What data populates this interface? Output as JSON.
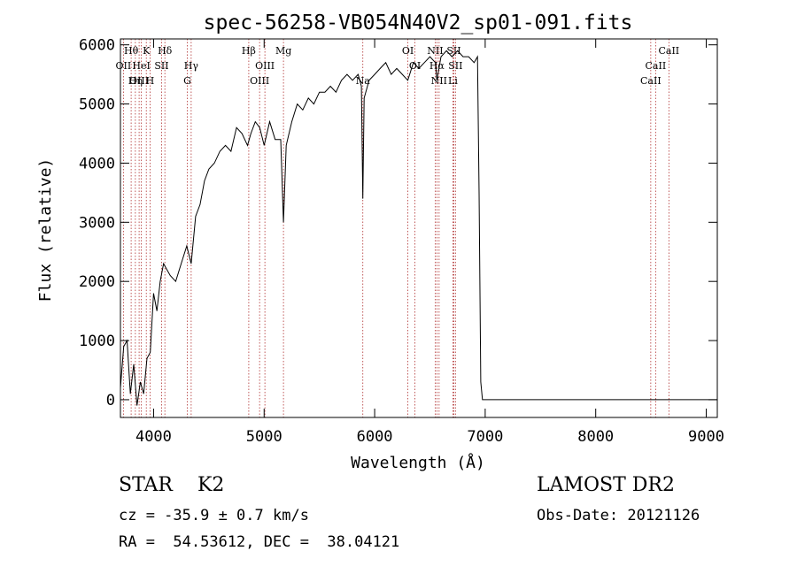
{
  "chart_data": {
    "type": "line",
    "title": "spec-56258-VB054N40V2_sp01-091.fits",
    "xlabel": "Wavelength (Å)",
    "ylabel": "Flux (relative)",
    "xlim": [
      3700,
      9100
    ],
    "ylim": [
      -300,
      6100
    ],
    "x_ticks": [
      4000,
      5000,
      6000,
      7000,
      8000,
      9000
    ],
    "y_ticks": [
      0,
      1000,
      2000,
      3000,
      4000,
      5000,
      6000
    ],
    "grid": false,
    "line_color": "#000000",
    "marker_color": "#b03030",
    "series": [
      {
        "points": [
          [
            3700,
            200
          ],
          [
            3730,
            900
          ],
          [
            3760,
            1000
          ],
          [
            3790,
            100
          ],
          [
            3820,
            600
          ],
          [
            3850,
            -100
          ],
          [
            3880,
            300
          ],
          [
            3910,
            100
          ],
          [
            3940,
            700
          ],
          [
            3970,
            800
          ],
          [
            4000,
            1800
          ],
          [
            4030,
            1500
          ],
          [
            4060,
            2000
          ],
          [
            4090,
            2300
          ],
          [
            4120,
            2200
          ],
          [
            4150,
            2100
          ],
          [
            4200,
            2000
          ],
          [
            4250,
            2300
          ],
          [
            4300,
            2600
          ],
          [
            4340,
            2300
          ],
          [
            4380,
            3100
          ],
          [
            4420,
            3300
          ],
          [
            4460,
            3700
          ],
          [
            4500,
            3900
          ],
          [
            4550,
            4000
          ],
          [
            4600,
            4200
          ],
          [
            4650,
            4300
          ],
          [
            4700,
            4200
          ],
          [
            4750,
            4600
          ],
          [
            4800,
            4500
          ],
          [
            4850,
            4300
          ],
          [
            4880,
            4500
          ],
          [
            4920,
            4700
          ],
          [
            4960,
            4600
          ],
          [
            5000,
            4300
          ],
          [
            5050,
            4700
          ],
          [
            5100,
            4400
          ],
          [
            5150,
            4400
          ],
          [
            5175,
            3000
          ],
          [
            5200,
            4300
          ],
          [
            5250,
            4700
          ],
          [
            5300,
            5000
          ],
          [
            5350,
            4900
          ],
          [
            5400,
            5100
          ],
          [
            5450,
            5000
          ],
          [
            5500,
            5200
          ],
          [
            5550,
            5200
          ],
          [
            5600,
            5300
          ],
          [
            5650,
            5200
          ],
          [
            5700,
            5400
          ],
          [
            5750,
            5500
          ],
          [
            5800,
            5400
          ],
          [
            5850,
            5500
          ],
          [
            5880,
            5300
          ],
          [
            5893,
            3400
          ],
          [
            5905,
            5100
          ],
          [
            5950,
            5400
          ],
          [
            6000,
            5500
          ],
          [
            6050,
            5600
          ],
          [
            6100,
            5700
          ],
          [
            6150,
            5500
          ],
          [
            6200,
            5600
          ],
          [
            6250,
            5500
          ],
          [
            6300,
            5400
          ],
          [
            6350,
            5700
          ],
          [
            6400,
            5600
          ],
          [
            6450,
            5700
          ],
          [
            6500,
            5800
          ],
          [
            6550,
            5700
          ],
          [
            6563,
            5400
          ],
          [
            6600,
            5800
          ],
          [
            6650,
            5900
          ],
          [
            6700,
            5800
          ],
          [
            6750,
            5900
          ],
          [
            6800,
            5800
          ],
          [
            6850,
            5800
          ],
          [
            6900,
            5700
          ],
          [
            6930,
            5800
          ],
          [
            6945,
            3500
          ],
          [
            6960,
            300
          ],
          [
            6975,
            0
          ],
          [
            7100,
            0
          ],
          [
            8000,
            0
          ],
          [
            9100,
            0
          ]
        ]
      }
    ],
    "line_markers": [
      {
        "label": "Hθ",
        "x": 3797,
        "row": 0
      },
      {
        "label": "OII",
        "x": 3727,
        "row": 1
      },
      {
        "label": "OIII",
        "x": 3869,
        "row": 2
      },
      {
        "label": "K",
        "x": 3934,
        "row": 0
      },
      {
        "label": "HeI",
        "x": 3889,
        "row": 1
      },
      {
        "label": "Hη",
        "x": 3835,
        "row": 2
      },
      {
        "label": "Hδ",
        "x": 4102,
        "row": 0
      },
      {
        "label": "SII",
        "x": 4072,
        "row": 1
      },
      {
        "label": "H",
        "x": 3968,
        "row": 2
      },
      {
        "label": "Hγ",
        "x": 4340,
        "row": 1
      },
      {
        "label": "G",
        "x": 4305,
        "row": 2
      },
      {
        "label": "Hβ",
        "x": 4861,
        "row": 0
      },
      {
        "label": "OIII",
        "x": 5007,
        "row": 1
      },
      {
        "label": "OIII",
        "x": 4959,
        "row": 2
      },
      {
        "label": "Mg",
        "x": 5175,
        "row": 0
      },
      {
        "label": "Na",
        "x": 5893,
        "row": 2
      },
      {
        "label": "OI",
        "x": 6300,
        "row": 0
      },
      {
        "label": "OI",
        "x": 6364,
        "row": 1
      },
      {
        "label": "NII",
        "x": 6548,
        "row": 0
      },
      {
        "label": "NII",
        "x": 6583,
        "row": 2
      },
      {
        "label": "Hα",
        "x": 6563,
        "row": 1
      },
      {
        "label": "SII",
        "x": 6716,
        "row": 0
      },
      {
        "label": "SII",
        "x": 6731,
        "row": 1
      },
      {
        "label": "Li",
        "x": 6708,
        "row": 2
      },
      {
        "label": "CaII",
        "x": 8662,
        "row": 0
      },
      {
        "label": "CaII",
        "x": 8542,
        "row": 1
      },
      {
        "label": "CaII",
        "x": 8498,
        "row": 2
      }
    ]
  },
  "info": {
    "object": "STAR    K2",
    "cz": "cz = -35.9 ± 0.7 km/s",
    "coords": "RA =  54.53612, DEC =  38.04121",
    "survey": "LAMOST DR2",
    "obs_date": "Obs-Date: 20121126"
  }
}
